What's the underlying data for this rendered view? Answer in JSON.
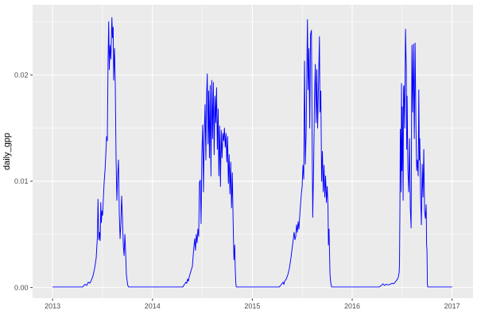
{
  "chart_data": {
    "type": "line",
    "title": "",
    "xlabel": "",
    "ylabel": "daily_gpp",
    "legend": false,
    "grid": true,
    "panel_bg": "#EBEBEB",
    "grid_color": "#FFFFFF",
    "tick_mark_color": "#333333",
    "tick_label_color": "#4D4D4D",
    "axis_title_color": "#000000",
    "line_color": "#0000FF",
    "xlim": [
      2012.8,
      2017.21
    ],
    "ylim": [
      -0.001,
      0.0266
    ],
    "x_ticks": {
      "values": [
        2013,
        2014,
        2015,
        2016,
        2017
      ],
      "labels": [
        "2013",
        "2014",
        "2015",
        "2016",
        "2017"
      ]
    },
    "y_ticks": {
      "values": [
        0.0,
        0.01,
        0.02
      ],
      "labels": [
        "0.00",
        "0.01",
        "0.02"
      ]
    },
    "x_minor_ticks": [
      2013.5,
      2014.5,
      2015.5,
      2016.5
    ],
    "y_minor_ticks": [
      0.005,
      0.015,
      0.025
    ],
    "series": [
      {
        "name": "daily_gpp",
        "color": "#0000FF",
        "points": [
          [
            2013.0,
            5e-05
          ],
          [
            2013.1,
            5e-05
          ],
          [
            2013.2,
            5e-05
          ],
          [
            2013.3,
            5e-05
          ],
          [
            2013.326,
            0.0003
          ],
          [
            2013.342,
            0.0002
          ],
          [
            2013.357,
            0.0005
          ],
          [
            2013.373,
            0.0004
          ],
          [
            2013.389,
            0.0007
          ],
          [
            2013.405,
            0.0011
          ],
          [
            2013.421,
            0.0018
          ],
          [
            2013.437,
            0.0028
          ],
          [
            2013.449,
            0.0048
          ],
          [
            2013.455,
            0.0083
          ],
          [
            2013.463,
            0.0045
          ],
          [
            2013.469,
            0.0052
          ],
          [
            2013.477,
            0.0044
          ],
          [
            2013.483,
            0.008
          ],
          [
            2013.489,
            0.0061
          ],
          [
            2013.495,
            0.0072
          ],
          [
            2013.501,
            0.0068
          ],
          [
            2013.509,
            0.0085
          ],
          [
            2013.517,
            0.01
          ],
          [
            2013.525,
            0.011
          ],
          [
            2013.533,
            0.0125
          ],
          [
            2013.541,
            0.0142
          ],
          [
            2013.548,
            0.0138
          ],
          [
            2013.556,
            0.0215
          ],
          [
            2013.562,
            0.025
          ],
          [
            2013.568,
            0.0205
          ],
          [
            2013.576,
            0.0228
          ],
          [
            2013.584,
            0.0215
          ],
          [
            2013.594,
            0.0254
          ],
          [
            2013.6,
            0.0235
          ],
          [
            2013.607,
            0.0245
          ],
          [
            2013.612,
            0.0195
          ],
          [
            2013.62,
            0.0225
          ],
          [
            2013.628,
            0.019
          ],
          [
            2013.636,
            0.012
          ],
          [
            2013.644,
            0.0082
          ],
          [
            2013.652,
            0.0105
          ],
          [
            2013.66,
            0.012
          ],
          [
            2013.668,
            0.007
          ],
          [
            2013.676,
            0.0046
          ],
          [
            2013.684,
            0.006
          ],
          [
            2013.692,
            0.0086
          ],
          [
            2013.7,
            0.0065
          ],
          [
            2013.708,
            0.004
          ],
          [
            2013.716,
            0.003
          ],
          [
            2013.724,
            0.005
          ],
          [
            2013.731,
            0.0035
          ],
          [
            2013.739,
            0.0012
          ],
          [
            2013.747,
            0.0006
          ],
          [
            2013.753,
            0.0002
          ],
          [
            2013.761,
            5e-05
          ],
          [
            2013.85,
            5e-05
          ],
          [
            2013.95,
            5e-05
          ],
          [
            2014.05,
            5e-05
          ],
          [
            2014.15,
            5e-05
          ],
          [
            2014.25,
            5e-05
          ],
          [
            2014.304,
            5e-05
          ],
          [
            2014.32,
            0.0003
          ],
          [
            2014.336,
            0.0005
          ],
          [
            2014.344,
            0.0004
          ],
          [
            2014.352,
            0.0008
          ],
          [
            2014.36,
            0.0006
          ],
          [
            2014.368,
            0.001
          ],
          [
            2014.384,
            0.0015
          ],
          [
            2014.4,
            0.002
          ],
          [
            2014.408,
            0.003
          ],
          [
            2014.415,
            0.0038
          ],
          [
            2014.423,
            0.0046
          ],
          [
            2014.431,
            0.0035
          ],
          [
            2014.439,
            0.005
          ],
          [
            2014.447,
            0.0042
          ],
          [
            2014.455,
            0.0055
          ],
          [
            2014.463,
            0.0048
          ],
          [
            2014.471,
            0.0099
          ],
          [
            2014.479,
            0.0101
          ],
          [
            2014.487,
            0.006
          ],
          [
            2014.495,
            0.0125
          ],
          [
            2014.503,
            0.0153
          ],
          [
            2014.511,
            0.009
          ],
          [
            2014.519,
            0.0145
          ],
          [
            2014.527,
            0.0172
          ],
          [
            2014.535,
            0.012
          ],
          [
            2014.541,
            0.0175
          ],
          [
            2014.549,
            0.0201
          ],
          [
            2014.557,
            0.0135
          ],
          [
            2014.563,
            0.0185
          ],
          [
            2014.571,
            0.0122
          ],
          [
            2014.578,
            0.019
          ],
          [
            2014.586,
            0.0105
          ],
          [
            2014.594,
            0.0195
          ],
          [
            2014.602,
            0.014
          ],
          [
            2014.61,
            0.0193
          ],
          [
            2014.618,
            0.0125
          ],
          [
            2014.626,
            0.018
          ],
          [
            2014.634,
            0.0155
          ],
          [
            2014.642,
            0.0188
          ],
          [
            2014.65,
            0.013
          ],
          [
            2014.658,
            0.0168
          ],
          [
            2014.665,
            0.0105
          ],
          [
            2014.673,
            0.0152
          ],
          [
            2014.681,
            0.0095
          ],
          [
            2014.689,
            0.0148
          ],
          [
            2014.697,
            0.0122
          ],
          [
            2014.705,
            0.0145
          ],
          [
            2014.713,
            0.0138
          ],
          [
            2014.721,
            0.015
          ],
          [
            2014.729,
            0.0132
          ],
          [
            2014.737,
            0.0145
          ],
          [
            2014.745,
            0.0118
          ],
          [
            2014.753,
            0.0142
          ],
          [
            2014.76,
            0.0098
          ],
          [
            2014.768,
            0.0125
          ],
          [
            2014.776,
            0.0088
          ],
          [
            2014.784,
            0.0118
          ],
          [
            2014.792,
            0.0075
          ],
          [
            2014.8,
            0.0108
          ],
          [
            2014.808,
            0.0062
          ],
          [
            2014.816,
            0.0026
          ],
          [
            2014.824,
            0.004
          ],
          [
            2014.829,
            0.0018
          ],
          [
            2014.835,
            0.0004
          ],
          [
            2014.84,
            5e-05
          ],
          [
            2014.92,
            5e-05
          ],
          [
            2015.0,
            5e-05
          ],
          [
            2015.1,
            5e-05
          ],
          [
            2015.2,
            5e-05
          ],
          [
            2015.27,
            5e-05
          ],
          [
            2015.292,
            0.0003
          ],
          [
            2015.308,
            0.0005
          ],
          [
            2015.316,
            0.0003
          ],
          [
            2015.324,
            0.0006
          ],
          [
            2015.34,
            0.0008
          ],
          [
            2015.356,
            0.0012
          ],
          [
            2015.371,
            0.0018
          ],
          [
            2015.387,
            0.0028
          ],
          [
            2015.403,
            0.004
          ],
          [
            2015.419,
            0.0052
          ],
          [
            2015.427,
            0.0045
          ],
          [
            2015.435,
            0.0048
          ],
          [
            2015.443,
            0.0059
          ],
          [
            2015.451,
            0.0052
          ],
          [
            2015.459,
            0.0062
          ],
          [
            2015.467,
            0.0055
          ],
          [
            2015.475,
            0.0068
          ],
          [
            2015.483,
            0.0078
          ],
          [
            2015.491,
            0.0088
          ],
          [
            2015.499,
            0.0095
          ],
          [
            2015.507,
            0.0115
          ],
          [
            2015.515,
            0.0102
          ],
          [
            2015.523,
            0.0213
          ],
          [
            2015.531,
            0.0116
          ],
          [
            2015.539,
            0.0145
          ],
          [
            2015.552,
            0.0252
          ],
          [
            2015.559,
            0.0186
          ],
          [
            2015.567,
            0.0225
          ],
          [
            2015.575,
            0.015
          ],
          [
            2015.583,
            0.0238
          ],
          [
            2015.592,
            0.0242
          ],
          [
            2015.599,
            0.014
          ],
          [
            2015.605,
            0.0066
          ],
          [
            2015.615,
            0.012
          ],
          [
            2015.623,
            0.018
          ],
          [
            2015.631,
            0.021
          ],
          [
            2015.639,
            0.0155
          ],
          [
            2015.646,
            0.0205
          ],
          [
            2015.654,
            0.015
          ],
          [
            2015.662,
            0.0185
          ],
          [
            2015.672,
            0.0236
          ],
          [
            2015.678,
            0.0165
          ],
          [
            2015.686,
            0.0185
          ],
          [
            2015.694,
            0.01
          ],
          [
            2015.702,
            0.0128
          ],
          [
            2015.71,
            0.009
          ],
          [
            2015.718,
            0.0115
          ],
          [
            2015.726,
            0.0085
          ],
          [
            2015.734,
            0.0105
          ],
          [
            2015.742,
            0.008
          ],
          [
            2015.75,
            0.0095
          ],
          [
            2015.758,
            0.0075
          ],
          [
            2015.762,
            0.004
          ],
          [
            2015.768,
            0.0055
          ],
          [
            2015.774,
            0.003
          ],
          [
            2015.778,
            0.0012
          ],
          [
            2015.786,
            0.0004
          ],
          [
            2015.794,
            5e-05
          ],
          [
            2015.88,
            5e-05
          ],
          [
            2015.98,
            5e-05
          ],
          [
            2016.08,
            5e-05
          ],
          [
            2016.18,
            5e-05
          ],
          [
            2016.27,
            5e-05
          ],
          [
            2016.292,
            0.0002
          ],
          [
            2016.308,
            0.00035
          ],
          [
            2016.324,
            0.0002
          ],
          [
            2016.34,
            0.0003
          ],
          [
            2016.36,
            0.00025
          ],
          [
            2016.38,
            0.0003
          ],
          [
            2016.4,
            0.0004
          ],
          [
            2016.415,
            0.00035
          ],
          [
            2016.43,
            0.0005
          ],
          [
            2016.438,
            0.0006
          ],
          [
            2016.454,
            0.0008
          ],
          [
            2016.462,
            0.001
          ],
          [
            2016.47,
            0.0014
          ],
          [
            2016.474,
            0.0022
          ],
          [
            2016.478,
            0.0075
          ],
          [
            2016.482,
            0.0149
          ],
          [
            2016.486,
            0.0128
          ],
          [
            2016.49,
            0.009
          ],
          [
            2016.494,
            0.0192
          ],
          [
            2016.498,
            0.011
          ],
          [
            2016.502,
            0.017
          ],
          [
            2016.51,
            0.0082
          ],
          [
            2016.514,
            0.0188
          ],
          [
            2016.518,
            0.019
          ],
          [
            2016.526,
            0.015
          ],
          [
            2016.534,
            0.0243
          ],
          [
            2016.542,
            0.0205
          ],
          [
            2016.546,
            0.013
          ],
          [
            2016.55,
            0.018
          ],
          [
            2016.558,
            0.011
          ],
          [
            2016.566,
            0.009
          ],
          [
            2016.574,
            0.014
          ],
          [
            2016.582,
            0.0075
          ],
          [
            2016.59,
            0.0056
          ],
          [
            2016.598,
            0.0228
          ],
          [
            2016.606,
            0.0165
          ],
          [
            2016.614,
            0.0229
          ],
          [
            2016.622,
            0.014
          ],
          [
            2016.63,
            0.023
          ],
          [
            2016.638,
            0.0155
          ],
          [
            2016.646,
            0.011
          ],
          [
            2016.653,
            0.012
          ],
          [
            2016.661,
            0.0105
          ],
          [
            2016.667,
            0.0186
          ],
          [
            2016.673,
            0.012
          ],
          [
            2016.677,
            0.014
          ],
          [
            2016.685,
            0.0085
          ],
          [
            2016.693,
            0.0059
          ],
          [
            2016.701,
            0.0116
          ],
          [
            2016.709,
            0.0085
          ],
          [
            2016.717,
            0.013
          ],
          [
            2016.725,
            0.0072
          ],
          [
            2016.733,
            0.0065
          ],
          [
            2016.741,
            0.0078
          ],
          [
            2016.745,
            0.004
          ],
          [
            2016.749,
            0.0035
          ],
          [
            2016.753,
            0.0003
          ],
          [
            2016.757,
            5e-05
          ],
          [
            2016.85,
            5e-05
          ],
          [
            2016.93,
            5e-05
          ],
          [
            2017.0,
            5e-05
          ]
        ]
      }
    ]
  }
}
